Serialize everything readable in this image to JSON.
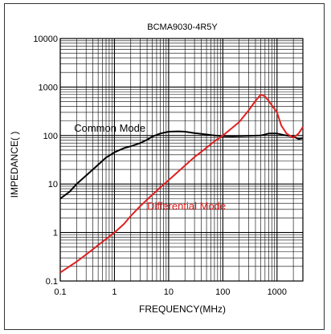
{
  "chart_data": {
    "type": "line",
    "title": "BCMA9030-4R5Y",
    "xlabel": "FREQUENCY(MHz)",
    "ylabel": "IMPEDANCE(   )",
    "x_scale": "log",
    "y_scale": "log",
    "xlim": [
      0.1,
      3000
    ],
    "ylim": [
      0.1,
      10000
    ],
    "x_ticks": [
      0.1,
      1,
      10,
      100,
      1000
    ],
    "x_tick_labels": [
      "0.1",
      "1",
      "10",
      "100",
      "1000"
    ],
    "y_ticks": [
      0.1,
      1,
      10,
      100,
      1000,
      10000
    ],
    "y_tick_labels": [
      "0.1",
      "1",
      "10",
      "100",
      "1000",
      "10000"
    ],
    "grid": true,
    "series": [
      {
        "name": "Common Mode",
        "color": "#000000",
        "x": [
          0.1,
          0.15,
          0.2,
          0.3,
          0.5,
          0.7,
          1,
          1.5,
          2,
          3,
          4,
          5,
          7,
          10,
          15,
          20,
          30,
          50,
          70,
          100,
          150,
          200,
          300,
          500,
          700,
          1000,
          1500,
          2000,
          2500,
          3000
        ],
        "y": [
          5,
          7,
          10,
          15,
          25,
          35,
          45,
          55,
          60,
          70,
          82,
          95,
          110,
          120,
          122,
          120,
          112,
          105,
          100,
          97,
          96,
          97,
          98,
          100,
          110,
          110,
          100,
          95,
          85,
          88
        ]
      },
      {
        "name": "Differential Mode",
        "color": "#e02020",
        "x": [
          0.1,
          0.2,
          0.3,
          0.5,
          1,
          1.5,
          2,
          3,
          5,
          7,
          10,
          20,
          30,
          50,
          70,
          100,
          150,
          200,
          300,
          400,
          500,
          600,
          700,
          1000,
          1200,
          1500,
          2000,
          2500,
          3000
        ],
        "y": [
          0.15,
          0.25,
          0.35,
          0.55,
          1.0,
          1.5,
          2.2,
          3.5,
          6,
          8.5,
          12,
          24,
          36,
          56,
          76,
          100,
          145,
          190,
          330,
          520,
          700,
          640,
          520,
          300,
          160,
          110,
          90,
          110,
          150
        ]
      }
    ],
    "annotations": [
      {
        "text": "Common Mode",
        "color": "#000000"
      },
      {
        "text": "Differential Mode",
        "color": "#e02020"
      }
    ]
  }
}
